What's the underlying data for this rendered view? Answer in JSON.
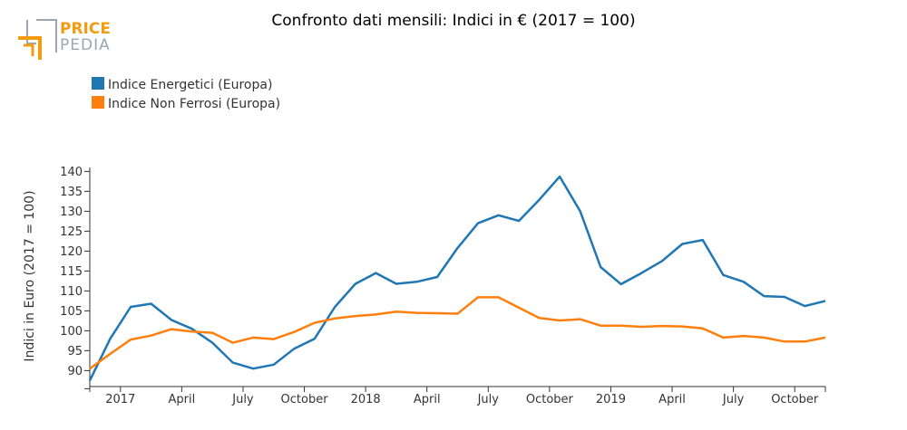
{
  "logo": {
    "line1": "PRICE",
    "line2": "PEDIA"
  },
  "chart_data": {
    "type": "line",
    "title": "Confronto dati mensili: Indici in € (2017 = 100)",
    "ylabel": "Indici in Euro (2017 = 100)",
    "xlabel": "",
    "ylim": [
      86,
      141
    ],
    "y_ticks": [
      90,
      95,
      100,
      105,
      110,
      115,
      120,
      125,
      130,
      135,
      140
    ],
    "x_ticks": [
      {
        "index": 1.5,
        "label": "2017"
      },
      {
        "index": 4.5,
        "label": "April"
      },
      {
        "index": 7.5,
        "label": "July"
      },
      {
        "index": 10.5,
        "label": "October"
      },
      {
        "index": 13.5,
        "label": "2018"
      },
      {
        "index": 16.5,
        "label": "April"
      },
      {
        "index": 19.5,
        "label": "July"
      },
      {
        "index": 22.5,
        "label": "October"
      },
      {
        "index": 25.5,
        "label": "2019"
      },
      {
        "index": 28.5,
        "label": "April"
      },
      {
        "index": 31.5,
        "label": "July"
      },
      {
        "index": 34.5,
        "label": "October"
      }
    ],
    "x_range": [
      0,
      36
    ],
    "series": [
      {
        "name": "Indice Energetici (Europa)",
        "color": "#1f77b4",
        "values": [
          87.5,
          98,
          106,
          106.8,
          102.7,
          100.5,
          97,
          92,
          90.5,
          91.5,
          95.5,
          98,
          106,
          111.8,
          114.5,
          111.8,
          112.3,
          113.5,
          120.8,
          127,
          129,
          127.6,
          132.9,
          138.7,
          130,
          116,
          111.7,
          114.5,
          117.5,
          121.8,
          122.8,
          114,
          112.3,
          108.7,
          108.5,
          106.2,
          107.5
        ]
      },
      {
        "name": "Indice Non Ferrosi (Europa)",
        "color": "#ff7f0e",
        "values": [
          90.5,
          94.2,
          97.8,
          98.8,
          100.4,
          99.8,
          99.5,
          97,
          98.3,
          97.9,
          99.7,
          102,
          103.1,
          103.7,
          104.1,
          104.8,
          104.5,
          104.4,
          104.3,
          108.4,
          108.4,
          105.8,
          103.2,
          102.6,
          102.9,
          101.3,
          101.3,
          101,
          101.2,
          101.1,
          100.6,
          98.3,
          98.7,
          98.3,
          97.3,
          97.3,
          98.3
        ]
      }
    ],
    "legend_position": "top-left"
  }
}
